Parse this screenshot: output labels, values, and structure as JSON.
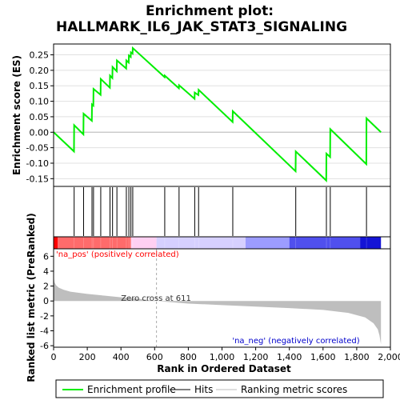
{
  "chart_data": {
    "type": "line",
    "title_line1": "Enrichment plot:",
    "title_line2": "HALLMARK_IL6_JAK_STAT3_SIGNALING",
    "es_ylabel": "Enrichment score (ES)",
    "metric_ylabel": "Ranked list metric (PreRanked)",
    "xlabel": "Rank in Ordered Dataset",
    "xlim": [
      0,
      2000
    ],
    "x_ticks": [
      0,
      200,
      400,
      600,
      800,
      1000,
      1200,
      1400,
      1600,
      1800,
      2000
    ],
    "x_tick_labels": [
      "0",
      "200",
      "400",
      "600",
      "800",
      "1,000",
      "1,200",
      "1,400",
      "1,600",
      "1,800",
      "2,000"
    ],
    "es_ylim": [
      -0.175,
      0.285
    ],
    "es_ticks": [
      -0.15,
      -0.1,
      -0.05,
      0.0,
      0.05,
      0.1,
      0.15,
      0.2,
      0.25
    ],
    "es_tick_labels": [
      "-0.15",
      "-0.10",
      "-0.05",
      "0.00",
      "0.05",
      "0.10",
      "0.15",
      "0.20",
      "0.25"
    ],
    "metric_ylim": [
      -6.2,
      7
    ],
    "metric_ticks": [
      -6,
      -4,
      -2,
      0,
      2,
      4,
      6
    ],
    "metric_tick_labels": [
      "-6",
      "-4",
      "-2",
      "0",
      "2",
      "4",
      "6"
    ],
    "total_genes": 1944,
    "zero_cross": 611,
    "zero_cross_label": "Zero cross at 611",
    "pos_label": "'na_pos' (positively correlated)",
    "neg_label": "'na_neg' (negatively correlated)",
    "hits": [
      0,
      122,
      178,
      228,
      237,
      280,
      335,
      350,
      376,
      432,
      447,
      459,
      470,
      660,
      745,
      838,
      861,
      1064,
      1438,
      1620,
      1643,
      1858
    ],
    "es_profile": {
      "x": [
        0,
        121,
        122,
        177,
        178,
        227,
        228,
        236,
        237,
        279,
        280,
        334,
        335,
        349,
        350,
        375,
        376,
        431,
        432,
        446,
        447,
        458,
        459,
        469,
        470,
        659,
        660,
        744,
        745,
        837,
        838,
        860,
        861,
        1063,
        1064,
        1437,
        1438,
        1619,
        1620,
        1642,
        1643,
        1857,
        1858,
        1944
      ],
      "y": [
        0.0,
        -0.062,
        0.023,
        -0.007,
        0.06,
        0.037,
        0.09,
        0.086,
        0.14,
        0.121,
        0.172,
        0.144,
        0.183,
        0.175,
        0.211,
        0.197,
        0.232,
        0.206,
        0.232,
        0.225,
        0.248,
        0.243,
        0.258,
        0.254,
        0.272,
        0.178,
        0.183,
        0.142,
        0.152,
        0.108,
        0.128,
        0.12,
        0.137,
        0.033,
        0.068,
        -0.126,
        -0.062,
        -0.156,
        -0.069,
        -0.08,
        0.01,
        -0.103,
        0.045,
        0.0
      ]
    },
    "metric_profile": {
      "x": [
        0,
        5,
        15,
        30,
        60,
        100,
        200,
        300,
        400,
        500,
        611,
        800,
        1000,
        1200,
        1400,
        1600,
        1750,
        1850,
        1900,
        1925,
        1935,
        1944
      ],
      "y": [
        3.4,
        2.5,
        2.1,
        1.8,
        1.5,
        1.25,
        0.95,
        0.72,
        0.5,
        0.3,
        0.0,
        -0.35,
        -0.55,
        -0.75,
        -0.95,
        -1.2,
        -1.6,
        -2.2,
        -3.0,
        -3.8,
        -4.6,
        -5.8
      ]
    },
    "ranking_bar_colors": [
      "#ff0000",
      "#ff6b6b",
      "#ffd0f2",
      "#d6d0ff",
      "#9c9cff",
      "#5050ee",
      "#1414d6"
    ],
    "ranking_bar_stops": [
      0,
      25,
      460,
      611,
      1140,
      1400,
      1820,
      1944
    ],
    "colors": {
      "profile": "#00ee00",
      "hits": "#000000",
      "metric_fill": "#bebebe",
      "pos_text": "#ff0000",
      "neg_text": "#0000cc"
    },
    "legend": [
      {
        "label": "Enrichment profile",
        "kind": "profile"
      },
      {
        "label": "Hits",
        "kind": "hits"
      },
      {
        "label": "Ranking metric scores",
        "kind": "metric"
      }
    ]
  }
}
